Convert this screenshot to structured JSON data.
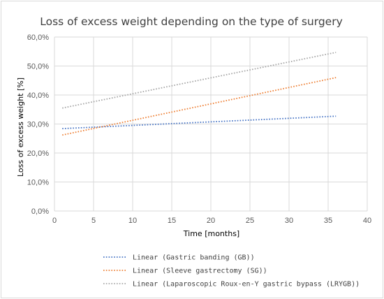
{
  "chart_data": {
    "type": "line",
    "title": "Loss of excess weight depending on the type of surgery",
    "xlabel": "Time [months]",
    "ylabel": "Loss of excess weight [%]",
    "xlim": [
      0,
      40
    ],
    "ylim": [
      0,
      60
    ],
    "x_ticks": [
      "0",
      "5",
      "10",
      "15",
      "20",
      "25",
      "30",
      "35",
      "40"
    ],
    "y_ticks": [
      "0,0%",
      "10,0%",
      "20,0%",
      "30,0%",
      "40,0%",
      "50,0%",
      "60,0%"
    ],
    "grid": "vertical and horizontal major gridlines",
    "legend_position": "bottom",
    "series": [
      {
        "name": "Linear (Gastric banding (GB))",
        "color": "#4472c4",
        "style": "dotted",
        "points": [
          [
            1,
            28.4
          ],
          [
            36,
            32.7
          ]
        ]
      },
      {
        "name": "Linear (Sleeve gastrectomy (SG))",
        "color": "#ed7d31",
        "style": "dotted",
        "points": [
          [
            1,
            26.2
          ],
          [
            36,
            46.0
          ]
        ]
      },
      {
        "name": "Linear (Laparoscopic Roux-en-Y gastric bypass (LRYGB))",
        "color": "#a5a5a5",
        "style": "dotted",
        "points": [
          [
            1,
            35.5
          ],
          [
            36,
            54.7
          ]
        ]
      }
    ]
  }
}
